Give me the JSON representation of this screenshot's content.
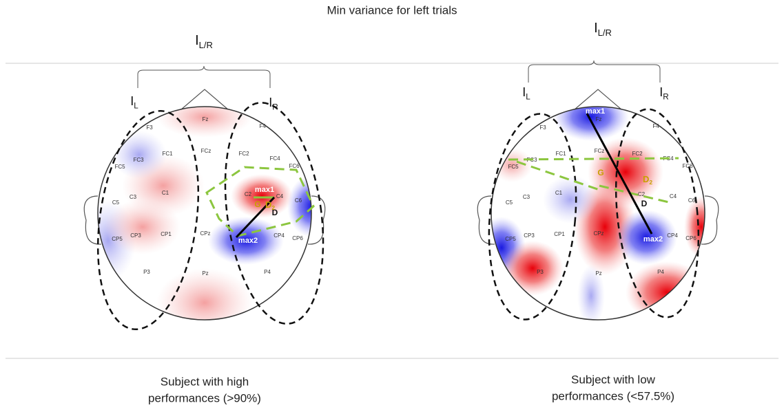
{
  "title": "Min variance for left trials",
  "panels": [
    {
      "group_label": {
        "main": "I",
        "sub": "L/R"
      },
      "left_label": {
        "main": "I",
        "sub": "L"
      },
      "right_label": {
        "main": "I",
        "sub": "R"
      },
      "electrodes": [
        "F3",
        "Fz",
        "F4",
        "FC5",
        "FC3",
        "FC1",
        "FCz",
        "FC2",
        "FC4",
        "FC6",
        "C5",
        "C3",
        "C1",
        "C2",
        "C4",
        "C6",
        "CP5",
        "CP3",
        "CP1",
        "CPz",
        "CP4",
        "CP6",
        "P3",
        "Pz",
        "P4"
      ],
      "annotations": [
        {
          "text": "max1"
        },
        {
          "text": "max2"
        },
        {
          "text": "D"
        },
        {
          "text": "G"
        },
        {
          "text": "D",
          "sub": "2"
        }
      ],
      "caption": [
        "Subject with high",
        "performances (>90%)"
      ]
    },
    {
      "group_label": {
        "main": "I",
        "sub": "L/R"
      },
      "left_label": {
        "main": "I",
        "sub": "L"
      },
      "right_label": {
        "main": "I",
        "sub": "R"
      },
      "electrodes": [
        "F3",
        "Fz",
        "F4",
        "FC5",
        "FC3",
        "FC1",
        "FCz",
        "FC2",
        "FC4",
        "FC6",
        "C5",
        "C3",
        "C1",
        "C2",
        "C4",
        "C6",
        "CP5",
        "CP3",
        "CP1",
        "CPz",
        "CP4",
        "CP6",
        "P3",
        "Pz",
        "P4"
      ],
      "annotations": [
        {
          "text": "max1"
        },
        {
          "text": "max2"
        },
        {
          "text": "D"
        },
        {
          "text": "G"
        },
        {
          "text": "D",
          "sub": "2"
        }
      ],
      "caption": [
        "Subject with low",
        "performances (<57.5%)"
      ]
    }
  ]
}
